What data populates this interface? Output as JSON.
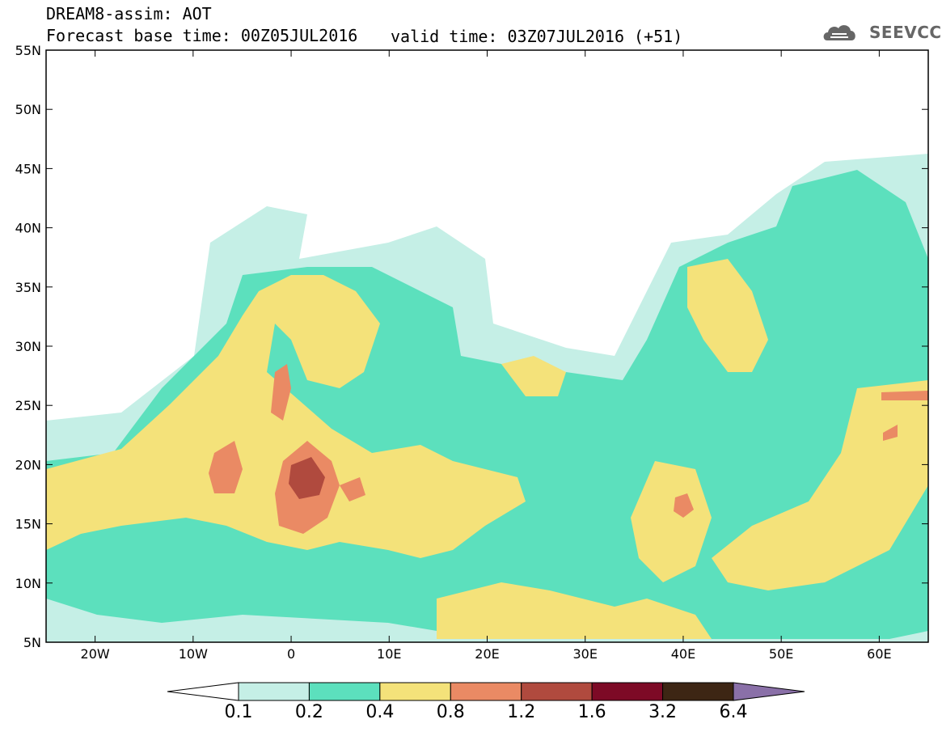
{
  "header": {
    "title_line1": "DREAM8-assim: AOT",
    "title_line2": "Forecast base time: 00Z05JUL2016",
    "valid_time": "valid time: 03Z07JUL2016 (+51)"
  },
  "logo": {
    "text": "SEEVCCC",
    "icon": "cloud-icon"
  },
  "map": {
    "lat_range": [
      5,
      55
    ],
    "lon_range": [
      -25,
      65
    ],
    "lat_labels": [
      "55N",
      "50N",
      "45N",
      "40N",
      "35N",
      "30N",
      "25N",
      "20N",
      "15N",
      "10N",
      "5N"
    ],
    "lon_labels": [
      "20W",
      "10W",
      "0",
      "10E",
      "20E",
      "30E",
      "40E",
      "50E",
      "60E"
    ]
  },
  "colorbar": {
    "levels": [
      "0.1",
      "0.2",
      "0.4",
      "0.8",
      "1.2",
      "1.6",
      "3.2",
      "6.4"
    ],
    "colors": [
      "#ffffff",
      "#c5efe6",
      "#5ce0bd",
      "#f4e27a",
      "#ea8a64",
      "#b04a3e",
      "#7d0a26",
      "#3d2614",
      "#8a70a8"
    ]
  }
}
